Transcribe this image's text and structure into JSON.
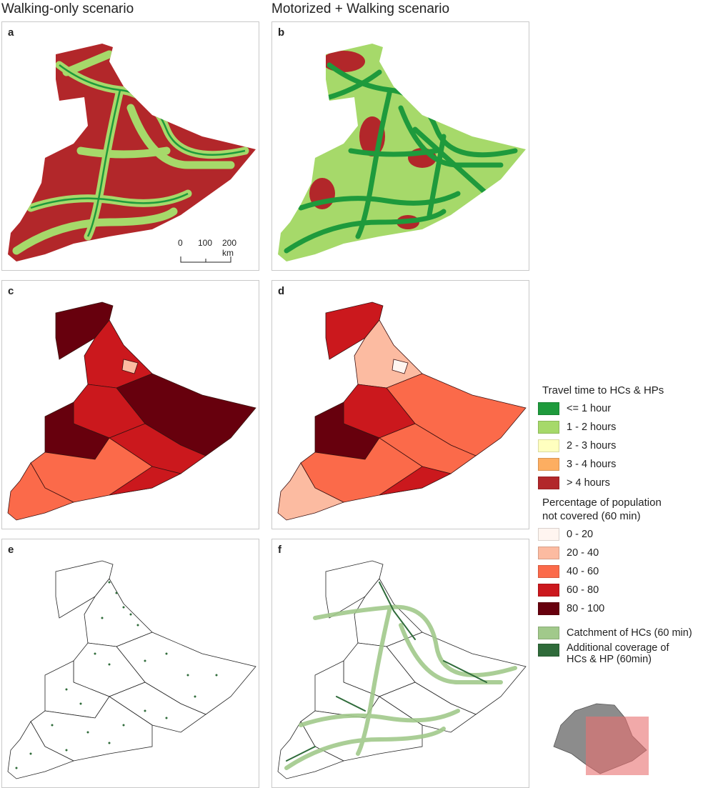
{
  "columns": {
    "left": "Walking-only scenario",
    "right": "Motorized + Walking scenario"
  },
  "panels": {
    "a": "a",
    "b": "b",
    "c": "c",
    "d": "d",
    "e": "e",
    "f": "f"
  },
  "scalebar": {
    "t0": "0",
    "t1": "100",
    "t2": "200 km"
  },
  "legend": {
    "travel": {
      "title": "Travel time to HCs & HPs",
      "items": [
        {
          "label": "<= 1 hour",
          "color": "#1e9a3c"
        },
        {
          "label": "1 - 2 hours",
          "color": "#a6d96a"
        },
        {
          "label": "2 - 3 hours",
          "color": "#ffffbf"
        },
        {
          "label": "3 - 4 hours",
          "color": "#fdae61"
        },
        {
          "label": "> 4 hours",
          "color": "#b2272a"
        }
      ]
    },
    "population": {
      "title_line1": "Percentage of population",
      "title_line2": "not covered (60 min)",
      "items": [
        {
          "label": "0 - 20",
          "color": "#fff5f0"
        },
        {
          "label": "20 - 40",
          "color": "#fcbba1"
        },
        {
          "label": "40 - 60",
          "color": "#fb6a4a"
        },
        {
          "label": "60 - 80",
          "color": "#cb181d"
        },
        {
          "label": "80 - 100",
          "color": "#67000d"
        }
      ]
    },
    "coverage": {
      "items": [
        {
          "label_line1": "Catchment of HCs (60 min)",
          "label_line2": "",
          "color": "#a1c98b"
        },
        {
          "label_line1": "Additional coverage of",
          "label_line2": "HCs & HP (60min)",
          "color": "#2f6b3a"
        }
      ]
    }
  }
}
